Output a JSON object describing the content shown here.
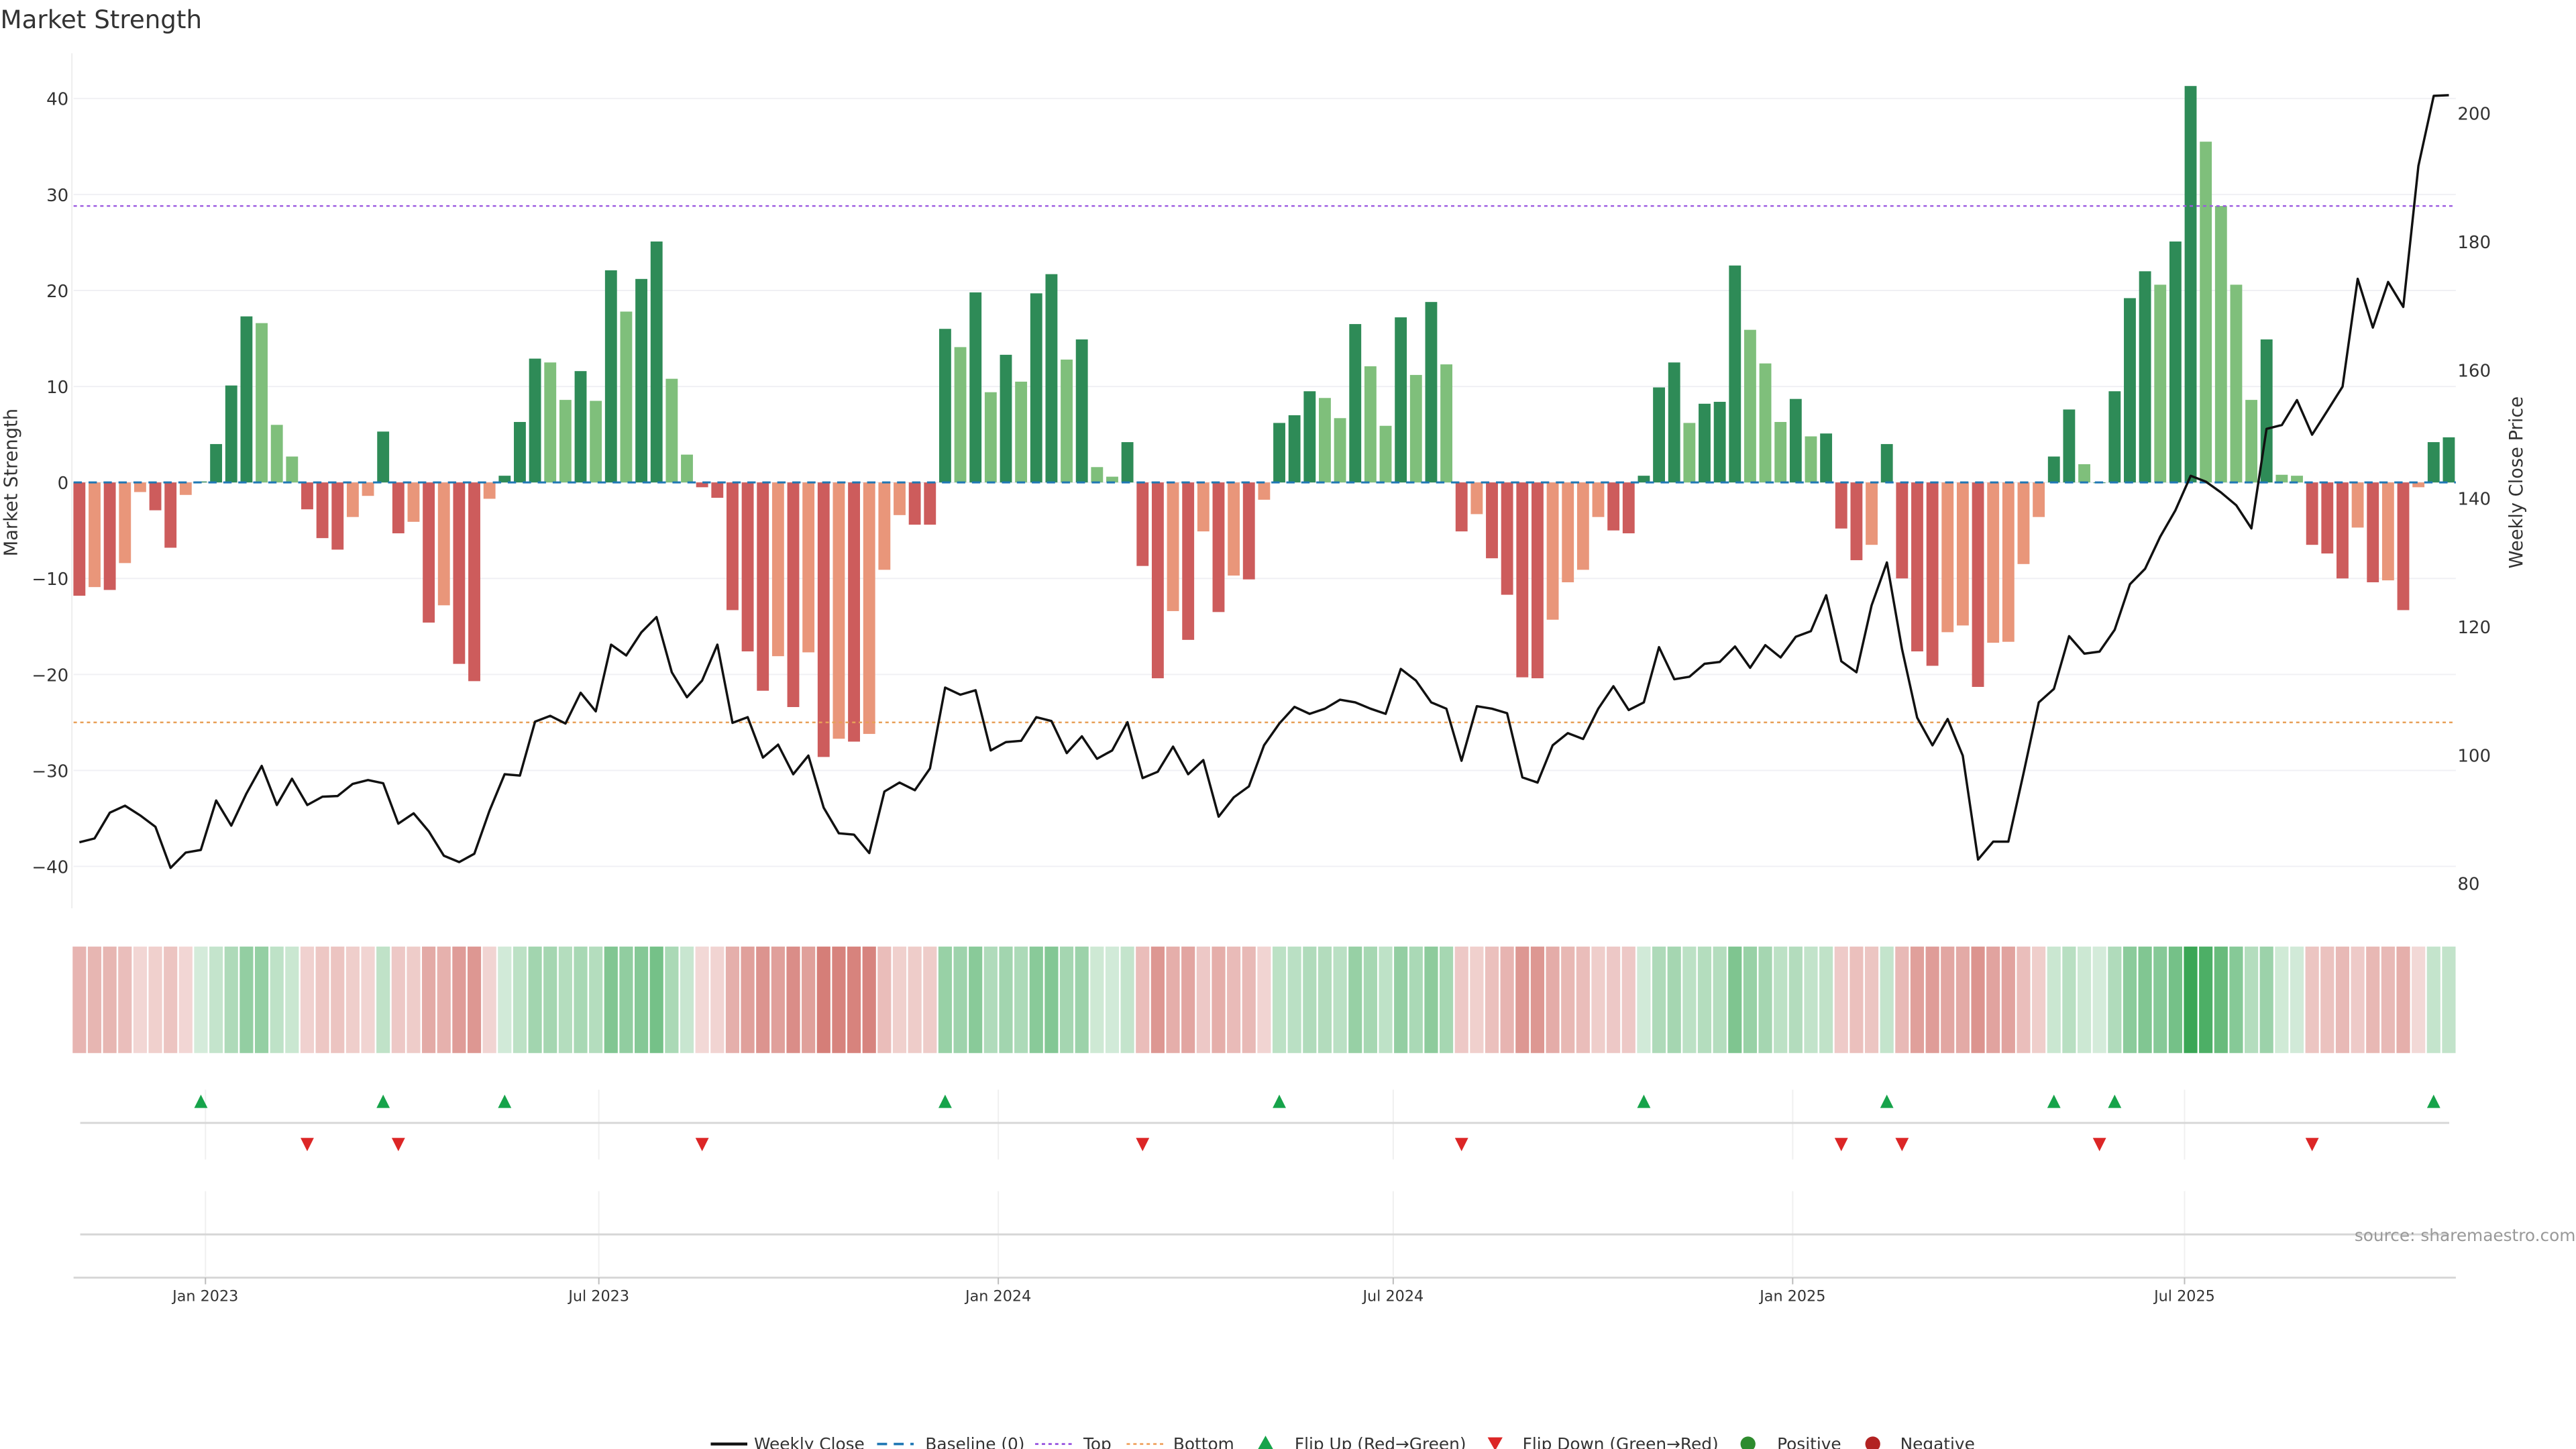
{
  "title": "Market Strength",
  "source": "source: sharemaestro.com",
  "chart_data": {
    "type": "bar",
    "title": "Market Strength",
    "ylabel": "Market Strength",
    "y2label": "Weekly Close Price",
    "ylim": [
      -44,
      45
    ],
    "y2lim": [
      77,
      208
    ],
    "yticks": [
      40,
      30,
      20,
      10,
      0,
      -10,
      -20,
      -30,
      -40
    ],
    "ytick_labels": [
      "40",
      "30",
      "20",
      "10",
      "0",
      "−10",
      "−20",
      "−30",
      "−40"
    ],
    "y2ticks": [
      200,
      180,
      160,
      140,
      120,
      100,
      80
    ],
    "y2tick_labels": [
      "200",
      "180",
      "160",
      "140",
      "120",
      "100",
      "80"
    ],
    "x_unit": "week index (weekly bars)",
    "xticks": [
      {
        "label": "Jan 2023",
        "week": 8.3
      },
      {
        "label": "Jul 2023",
        "week": 34.2
      },
      {
        "label": "Jan 2024",
        "week": 60.5
      },
      {
        "label": "Jul 2024",
        "week": 86.5
      },
      {
        "label": "Jan 2025",
        "week": 112.8
      },
      {
        "label": "Jul 2025",
        "week": 138.6
      }
    ],
    "top_level": 28.8,
    "bottom_level": -25.0,
    "baseline": 0,
    "strength": [
      -11.8,
      -10.9,
      -11.2,
      -8.4,
      -1.0,
      -2.9,
      -6.8,
      -1.3,
      0.1,
      4.0,
      10.1,
      17.3,
      16.6,
      6.0,
      2.7,
      -2.8,
      -5.8,
      -7.0,
      -3.6,
      -1.4,
      5.3,
      -5.3,
      -4.1,
      -14.6,
      -12.8,
      -18.9,
      -20.7,
      -1.7,
      0.7,
      6.3,
      12.9,
      12.5,
      8.6,
      11.6,
      8.5,
      22.1,
      17.8,
      21.2,
      25.1,
      10.8,
      2.9,
      -0.5,
      -1.6,
      -13.3,
      -17.6,
      -21.7,
      -18.1,
      -23.4,
      -17.7,
      -28.6,
      -26.7,
      -27.0,
      -26.2,
      -9.1,
      -3.4,
      -4.4,
      -4.4,
      16.0,
      14.1,
      19.8,
      9.4,
      13.3,
      10.5,
      19.7,
      21.7,
      12.8,
      14.9,
      1.6,
      0.6,
      4.2,
      -8.7,
      -20.4,
      -13.4,
      -16.4,
      -5.1,
      -13.5,
      -9.7,
      -10.1,
      -1.8,
      6.2,
      7.0,
      9.5,
      8.8,
      6.7,
      16.5,
      12.1,
      5.9,
      17.2,
      11.2,
      18.8,
      12.3,
      -5.1,
      -3.3,
      -7.9,
      -11.7,
      -20.3,
      -20.4,
      -14.3,
      -10.4,
      -9.1,
      -3.6,
      -5.0,
      -5.3,
      0.7,
      9.9,
      12.5,
      6.2,
      8.2,
      8.4,
      22.6,
      15.9,
      12.4,
      6.3,
      8.7,
      4.8,
      5.1,
      -4.8,
      -8.1,
      -6.5,
      4.0,
      -10.0,
      -17.6,
      -19.1,
      -15.6,
      -14.9,
      -21.3,
      -16.7,
      -16.6,
      -8.5,
      -3.6,
      2.7,
      7.6,
      1.9,
      0.0,
      9.5,
      19.2,
      22.0,
      20.6,
      25.1,
      41.3,
      35.5,
      28.8,
      20.6,
      8.6,
      14.9,
      0.8,
      0.7,
      -6.5,
      -7.4,
      -10.0,
      -4.7,
      -10.4,
      -10.2,
      -13.3,
      -0.5,
      4.2,
      4.7
    ],
    "weekly_close": [
      86.4,
      87.0,
      91.0,
      92.1,
      90.6,
      88.8,
      82.4,
      84.8,
      85.2,
      92.9,
      89.0,
      94.0,
      98.3,
      92.2,
      96.3,
      92.2,
      93.5,
      93.6,
      95.5,
      96.1,
      95.6,
      89.3,
      90.9,
      88.1,
      84.3,
      83.3,
      84.6,
      91.3,
      97.0,
      96.8,
      105.2,
      106.1,
      104.9,
      109.7,
      106.8,
      117.2,
      115.5,
      119.1,
      121.5,
      112.9,
      109.0,
      111.6,
      117.2,
      105.0,
      105.9,
      99.6,
      101.6,
      97.0,
      99.9,
      91.8,
      87.8,
      87.6,
      84.7,
      94.3,
      95.7,
      94.5,
      97.9,
      110.5,
      109.4,
      110.1,
      100.7,
      102.0,
      102.2,
      105.9,
      105.3,
      100.3,
      102.9,
      99.4,
      100.7,
      105.1,
      96.4,
      97.4,
      101.3,
      97.0,
      99.2,
      90.4,
      93.4,
      95.1,
      101.5,
      104.9,
      107.5,
      106.4,
      107.2,
      108.6,
      108.2,
      107.2,
      106.4,
      113.4,
      111.6,
      108.2,
      107.2,
      99.1,
      107.6,
      107.2,
      106.5,
      96.5,
      95.7,
      101.5,
      103.4,
      102.5,
      107.2,
      110.7,
      107.0,
      108.2,
      116.8,
      111.8,
      112.2,
      114.2,
      114.5,
      116.9,
      113.6,
      117.1,
      115.2,
      118.4,
      119.3,
      124.9,
      114.6,
      112.9,
      123.3,
      130.0,
      116.5,
      105.8,
      101.5,
      105.6,
      99.9,
      83.7,
      86.5,
      86.5,
      97.1,
      108.2,
      110.3,
      118.5,
      115.8,
      116.1,
      119.5,
      126.6,
      129.0,
      134.0,
      138.1,
      143.5,
      142.6,
      140.9,
      138.9,
      135.3,
      150.8,
      151.4,
      155.3,
      149.9,
      153.6,
      157.4,
      174.2,
      166.6,
      173.7,
      169.8,
      191.8,
      202.7,
      202.8
    ],
    "flip_up_weeks": [
      8,
      20,
      28,
      57,
      79,
      103,
      119,
      130,
      134,
      155
    ],
    "flip_down_weeks": [
      15,
      21,
      41,
      70,
      91,
      116,
      120,
      133,
      147
    ],
    "legend": {
      "placement": "bottom-center",
      "items": [
        {
          "label": "Weekly Close",
          "kind": "line",
          "color": "#111111"
        },
        {
          "label": "Baseline (0)",
          "kind": "dash",
          "color": "#1f77b4"
        },
        {
          "label": "Top",
          "kind": "dot",
          "color": "#9b59e0"
        },
        {
          "label": "Bottom",
          "kind": "dot",
          "color": "#f0a868"
        },
        {
          "label": "Flip Up (Red→Green)",
          "kind": "tri-up",
          "color": "#16a34a"
        },
        {
          "label": "Flip Down (Green→Red)",
          "kind": "tri-down",
          "color": "#dc2626"
        },
        {
          "label": "Positive",
          "kind": "circle",
          "color": "#2e8b2e"
        },
        {
          "label": "Negative",
          "kind": "circle",
          "color": "#b22222"
        }
      ]
    },
    "colors": {
      "pos_strong": "#2e8b57",
      "pos_weak": "#7fbf7b",
      "neg_strong": "#cd5c5c",
      "neg_weak": "#e9967a",
      "top": "#9b59e0",
      "bottom": "#e8a058",
      "baseline": "#1f77b4",
      "heat_pos": "#3aa655",
      "heat_neg": "#c8554d"
    }
  }
}
